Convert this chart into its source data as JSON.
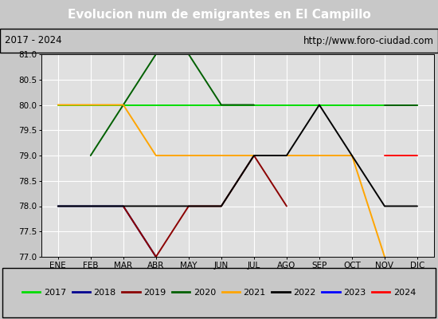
{
  "title": "Evolucion num de emigrantes en El Campillo",
  "subtitle_left": "2017 - 2024",
  "subtitle_right": "http://www.foro-ciudad.com",
  "months": [
    "ENE",
    "FEB",
    "MAR",
    "ABR",
    "MAY",
    "JUN",
    "JUL",
    "AGO",
    "SEP",
    "OCT",
    "NOV",
    "DIC"
  ],
  "ylim": [
    77.0,
    81.0
  ],
  "yticks": [
    77.0,
    77.5,
    78.0,
    78.5,
    79.0,
    79.5,
    80.0,
    80.5,
    81.0
  ],
  "title_bg_color": "#4a86c8",
  "subtitle_bg_color": "#d4d4d4",
  "plot_bg_color": "#e0e0e0",
  "fig_bg_color": "#c8c8c8",
  "legend_bg_color": "#f0f0f0",
  "grid_color": "#ffffff",
  "series": [
    {
      "year": "2017",
      "color": "#00dd00",
      "data": [
        80,
        80,
        80,
        80,
        80,
        80,
        80,
        80,
        80,
        80,
        80,
        80
      ]
    },
    {
      "year": "2018",
      "color": "#000090",
      "data": [
        78,
        78,
        78,
        77,
        null,
        null,
        null,
        null,
        null,
        null,
        null,
        null
      ]
    },
    {
      "year": "2019",
      "color": "#8b0000",
      "data": [
        null,
        null,
        78,
        77,
        78,
        78,
        79,
        78,
        null,
        null,
        null,
        null
      ]
    },
    {
      "year": "2020",
      "color": "#006000",
      "data": [
        null,
        79,
        80,
        81,
        81,
        80,
        80,
        null,
        null,
        null,
        80,
        80
      ]
    },
    {
      "year": "2021",
      "color": "#ffa500",
      "data": [
        80,
        80,
        80,
        79,
        79,
        79,
        79,
        79,
        79,
        79,
        77,
        null
      ]
    },
    {
      "year": "2022",
      "color": "#000000",
      "data": [
        78,
        78,
        78,
        78,
        78,
        78,
        79,
        79,
        80,
        79,
        78,
        78
      ]
    },
    {
      "year": "2023",
      "color": "#0000ff",
      "data": [
        null,
        null,
        null,
        77,
        null,
        null,
        null,
        null,
        null,
        null,
        null,
        null
      ]
    },
    {
      "year": "2024",
      "color": "#ff0000",
      "data": [
        null,
        null,
        null,
        null,
        null,
        null,
        null,
        null,
        null,
        null,
        79,
        79
      ]
    }
  ]
}
